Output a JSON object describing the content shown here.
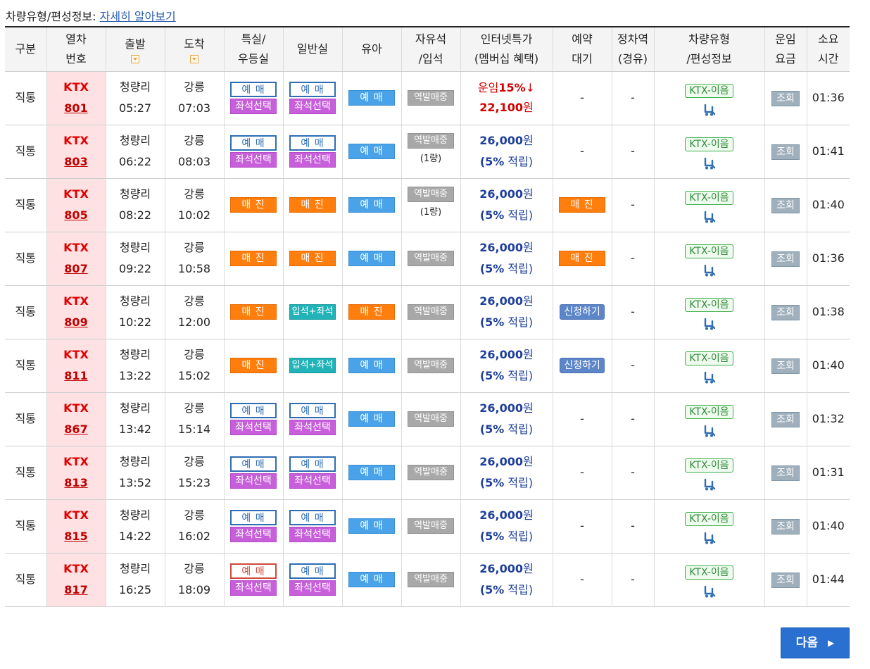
{
  "notice": {
    "label": "차량유형/편성정보:",
    "link": "자세히 알아보기"
  },
  "columns": [
    [
      "구분"
    ],
    [
      "열차",
      "번호"
    ],
    [
      "출발"
    ],
    [
      "도착"
    ],
    [
      "특실/",
      "우등실"
    ],
    [
      "일반실"
    ],
    [
      "유아"
    ],
    [
      "자유석",
      "/입석"
    ],
    [
      "인터넷특가",
      "(멤버십 혜택)"
    ],
    [
      "예약",
      "대기"
    ],
    [
      "정차역",
      "(경유)"
    ],
    [
      "차량유형",
      "/편성정보"
    ],
    [
      "운임",
      "요금"
    ],
    [
      "소요",
      "시간"
    ]
  ],
  "labels": {
    "book": "예 매",
    "seat": "좌석선택",
    "sold": "매 진",
    "combo": "입석+좌석",
    "apply": "신청하기",
    "free": "역발매중",
    "dash": "-",
    "fare": "조회",
    "ktxname": "KTX-이음",
    "ktx": "KTX",
    "promo_label": "운임",
    "promo_rate": "15%",
    "promo_arrow": "↓",
    "won": "원",
    "accr_rate": "(5%",
    "accr_text": " 적립)"
  },
  "rows": [
    {
      "type": "직통",
      "no": "801",
      "dep": "청량리",
      "dep_t": "05:27",
      "arr": "강릉",
      "arr_t": "07:03",
      "first": "bookseat",
      "first_red": false,
      "normal": "bookseat",
      "infant": "blue",
      "free": "",
      "price": "22,100",
      "promo": true,
      "wait": "-",
      "stop": "-",
      "dur": "01:36"
    },
    {
      "type": "직통",
      "no": "803",
      "dep": "청량리",
      "dep_t": "06:22",
      "arr": "강릉",
      "arr_t": "08:03",
      "first": "bookseat",
      "first_red": false,
      "normal": "bookseat",
      "infant": "blue",
      "free": "(1량)",
      "price": "26,000",
      "promo": false,
      "wait": "-",
      "stop": "-",
      "dur": "01:41"
    },
    {
      "type": "직통",
      "no": "805",
      "dep": "청량리",
      "dep_t": "08:22",
      "arr": "강릉",
      "arr_t": "10:02",
      "first": "sold",
      "first_red": false,
      "normal": "sold",
      "infant": "blue",
      "free": "(1량)",
      "price": "26,000",
      "promo": false,
      "wait": "sold",
      "stop": "-",
      "dur": "01:40"
    },
    {
      "type": "직통",
      "no": "807",
      "dep": "청량리",
      "dep_t": "09:22",
      "arr": "강릉",
      "arr_t": "10:58",
      "first": "sold",
      "first_red": false,
      "normal": "sold",
      "infant": "blue",
      "free": "",
      "price": "26,000",
      "promo": false,
      "wait": "sold",
      "stop": "-",
      "dur": "01:36"
    },
    {
      "type": "직통",
      "no": "809",
      "dep": "청량리",
      "dep_t": "10:22",
      "arr": "강릉",
      "arr_t": "12:00",
      "first": "sold",
      "first_red": false,
      "normal": "combo",
      "infant": "sold",
      "free": "",
      "price": "26,000",
      "promo": false,
      "wait": "apply",
      "stop": "-",
      "dur": "01:38"
    },
    {
      "type": "직통",
      "no": "811",
      "dep": "청량리",
      "dep_t": "13:22",
      "arr": "강릉",
      "arr_t": "15:02",
      "first": "sold",
      "first_red": false,
      "normal": "combo",
      "infant": "blue",
      "free": "",
      "price": "26,000",
      "promo": false,
      "wait": "apply",
      "stop": "-",
      "dur": "01:40"
    },
    {
      "type": "직통",
      "no": "867",
      "dep": "청량리",
      "dep_t": "13:42",
      "arr": "강릉",
      "arr_t": "15:14",
      "first": "bookseat",
      "first_red": false,
      "normal": "bookseat",
      "infant": "blue",
      "free": "",
      "price": "26,000",
      "promo": false,
      "wait": "-",
      "stop": "-",
      "dur": "01:32"
    },
    {
      "type": "직통",
      "no": "813",
      "dep": "청량리",
      "dep_t": "13:52",
      "arr": "강릉",
      "arr_t": "15:23",
      "first": "bookseat",
      "first_red": false,
      "normal": "bookseat",
      "infant": "blue",
      "free": "",
      "price": "26,000",
      "promo": false,
      "wait": "-",
      "stop": "-",
      "dur": "01:31"
    },
    {
      "type": "직통",
      "no": "815",
      "dep": "청량리",
      "dep_t": "14:22",
      "arr": "강릉",
      "arr_t": "16:02",
      "first": "bookseat",
      "first_red": false,
      "normal": "bookseat",
      "infant": "blue",
      "free": "",
      "price": "26,000",
      "promo": false,
      "wait": "-",
      "stop": "-",
      "dur": "01:40"
    },
    {
      "type": "직통",
      "no": "817",
      "dep": "청량리",
      "dep_t": "16:25",
      "arr": "강릉",
      "arr_t": "18:09",
      "first": "bookseat",
      "first_red": true,
      "normal": "bookseat",
      "infant": "blue",
      "free": "",
      "price": "26,000",
      "promo": false,
      "wait": "-",
      "stop": "-",
      "dur": "01:44"
    }
  ],
  "next": {
    "label": "다음",
    "icon": "chevron-right-icon"
  },
  "colors": {
    "accent": "#2a70d0",
    "sold": "#ff7e0d",
    "seat": "#c65fd9",
    "train": "#e00000"
  }
}
